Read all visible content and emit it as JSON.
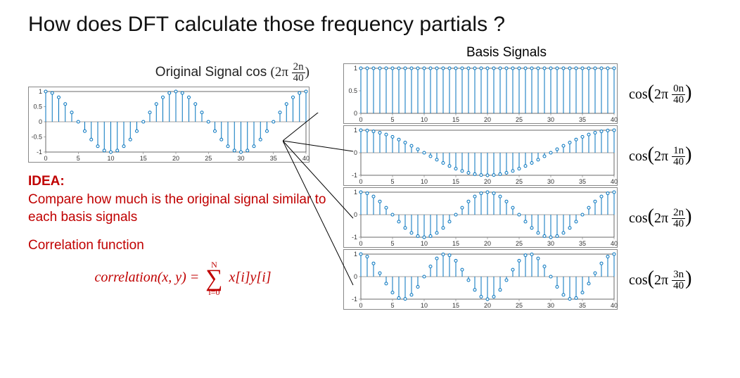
{
  "title": "How does DFT calculate those frequency partials ?",
  "original": {
    "label_prefix": "Original Signal cos",
    "formula_num": "2n",
    "formula_den": "40",
    "chart": {
      "type": "stem",
      "xlim": [
        0,
        40
      ],
      "ylim": [
        -1,
        1
      ],
      "xticks": [
        0,
        5,
        10,
        15,
        20,
        25,
        30,
        35,
        40
      ],
      "yticks": [
        -1,
        -0.5,
        0,
        0.5,
        1
      ],
      "n_points": 41,
      "freq_k": 2,
      "period_N": 40,
      "stem_color": "#0072bd",
      "marker_color": "#0072bd",
      "marker_fill": "#ffffff",
      "marker_r": 2.0,
      "axis_color": "#444444",
      "label_fontsize": 9
    }
  },
  "idea": {
    "heading": "IDEA:",
    "text": "Compare how much is the original signal similar to each basis signals"
  },
  "correlation_label": "Correlation function",
  "formula_text": "correlation(x, y) =",
  "formula_sum_upper": "N",
  "formula_sum_lower": "i=0",
  "formula_body": "x[i]y[i]",
  "basis_title": "Basis Signals",
  "basis": [
    {
      "k": 0,
      "formula_num": "0n",
      "formula_den": "40",
      "ylim": [
        0,
        1
      ],
      "yticks": [
        0,
        0.5,
        1
      ],
      "xlim": [
        0,
        40
      ],
      "xticks": [
        0,
        5,
        10,
        15,
        20,
        25,
        30,
        35,
        40
      ],
      "n_points": 41,
      "period_N": 40,
      "stem_color": "#0072bd",
      "marker_fill": "#ffffff",
      "axis_color": "#444444",
      "label_fontsize": 9,
      "marker_r": 2.0
    },
    {
      "k": 1,
      "formula_num": "1n",
      "formula_den": "40",
      "ylim": [
        -1,
        1
      ],
      "yticks": [
        -1,
        0,
        1
      ],
      "xlim": [
        0,
        40
      ],
      "xticks": [
        0,
        5,
        10,
        15,
        20,
        25,
        30,
        35,
        40
      ],
      "n_points": 41,
      "period_N": 40,
      "stem_color": "#0072bd",
      "marker_fill": "#ffffff",
      "axis_color": "#444444",
      "label_fontsize": 9,
      "marker_r": 2.0
    },
    {
      "k": 2,
      "formula_num": "2n",
      "formula_den": "40",
      "ylim": [
        -1,
        1
      ],
      "yticks": [
        -1,
        0,
        1
      ],
      "xlim": [
        0,
        40
      ],
      "xticks": [
        0,
        5,
        10,
        15,
        20,
        25,
        30,
        35,
        40
      ],
      "n_points": 41,
      "period_N": 40,
      "stem_color": "#0072bd",
      "marker_fill": "#ffffff",
      "axis_color": "#444444",
      "label_fontsize": 9,
      "marker_r": 2.0
    },
    {
      "k": 3,
      "formula_num": "3n",
      "formula_den": "40",
      "ylim": [
        -1,
        1
      ],
      "yticks": [
        -1,
        0,
        1
      ],
      "xlim": [
        0,
        40
      ],
      "xticks": [
        0,
        5,
        10,
        15,
        20,
        25,
        30,
        35,
        40
      ],
      "n_points": 41,
      "period_N": 40,
      "stem_color": "#0072bd",
      "marker_fill": "#ffffff",
      "axis_color": "#444444",
      "label_fontsize": 9,
      "marker_r": 2.0
    }
  ],
  "connector_color": "#000000"
}
